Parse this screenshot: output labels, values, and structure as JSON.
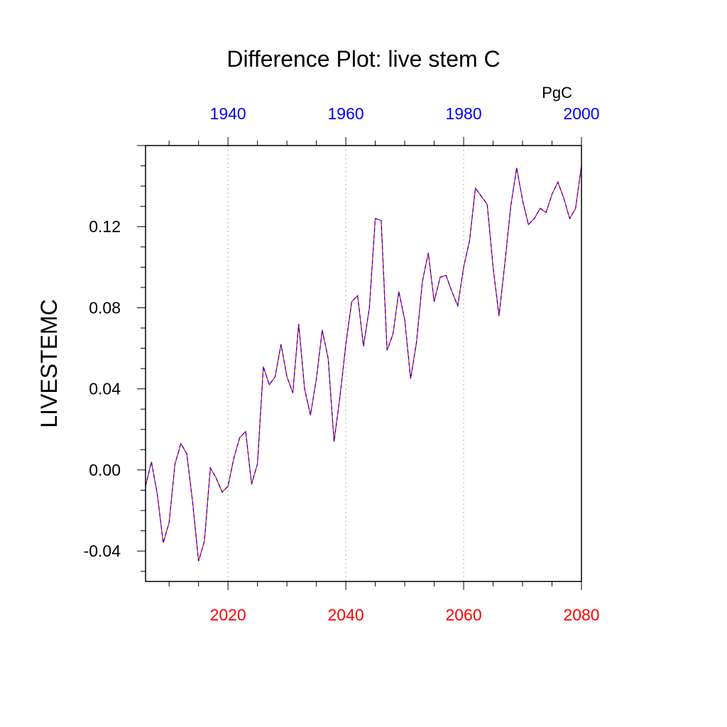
{
  "chart_data": {
    "type": "line",
    "title": "Difference Plot: live stem C",
    "ylabel": "LIVESTEMC",
    "units_label": "PgC",
    "bottom_axis": {
      "range": [
        2006,
        2080
      ],
      "ticks": [
        2020,
        2040,
        2060,
        2080
      ],
      "tick_labels": [
        "2020",
        "2040",
        "2060",
        "2080"
      ],
      "color": "#ff0000"
    },
    "top_axis": {
      "range": [
        1926,
        2000
      ],
      "ticks": [
        1940,
        1960,
        1980,
        2000
      ],
      "tick_labels": [
        "1940",
        "1960",
        "1980",
        "2000"
      ],
      "color": "#0000ff"
    },
    "ylim": [
      -0.055,
      0.16
    ],
    "y_ticks": [
      -0.04,
      0.0,
      0.04,
      0.08,
      0.12
    ],
    "y_tick_labels": [
      "-0.04",
      "0.00",
      "0.04",
      "0.08",
      "0.12"
    ],
    "grid": "vertical dotted at labeled bottom ticks",
    "series": [
      {
        "line_colors": [
          "#ff0000",
          "#0000ff"
        ],
        "x": [
          2006,
          2007,
          2008,
          2009,
          2010,
          2011,
          2012,
          2013,
          2014,
          2015,
          2016,
          2017,
          2018,
          2019,
          2020,
          2021,
          2022,
          2023,
          2024,
          2025,
          2026,
          2027,
          2028,
          2029,
          2030,
          2031,
          2032,
          2033,
          2034,
          2035,
          2036,
          2037,
          2038,
          2039,
          2040,
          2041,
          2042,
          2043,
          2044,
          2045,
          2046,
          2047,
          2048,
          2049,
          2050,
          2051,
          2052,
          2053,
          2054,
          2055,
          2056,
          2057,
          2058,
          2059,
          2060,
          2061,
          2062,
          2063,
          2064,
          2065,
          2066,
          2067,
          2068,
          2069,
          2070,
          2071,
          2072,
          2073,
          2074,
          2075,
          2076,
          2077,
          2078,
          2079,
          2080
        ],
        "y": [
          -0.008,
          0.004,
          -0.012,
          -0.036,
          -0.026,
          0.003,
          0.013,
          0.008,
          -0.016,
          -0.045,
          -0.035,
          0.001,
          -0.004,
          -0.011,
          -0.008,
          0.006,
          0.016,
          0.019,
          -0.007,
          0.003,
          0.051,
          0.042,
          0.046,
          0.062,
          0.046,
          0.038,
          0.072,
          0.04,
          0.027,
          0.045,
          0.069,
          0.055,
          0.014,
          0.036,
          0.062,
          0.083,
          0.086,
          0.061,
          0.08,
          0.124,
          0.123,
          0.059,
          0.067,
          0.088,
          0.074,
          0.045,
          0.063,
          0.093,
          0.107,
          0.083,
          0.095,
          0.096,
          0.088,
          0.081,
          0.1,
          0.113,
          0.139,
          0.135,
          0.131,
          0.1,
          0.076,
          0.102,
          0.13,
          0.149,
          0.133,
          0.121,
          0.124,
          0.129,
          0.127,
          0.136,
          0.142,
          0.134,
          0.124,
          0.129,
          0.15
        ]
      }
    ]
  }
}
